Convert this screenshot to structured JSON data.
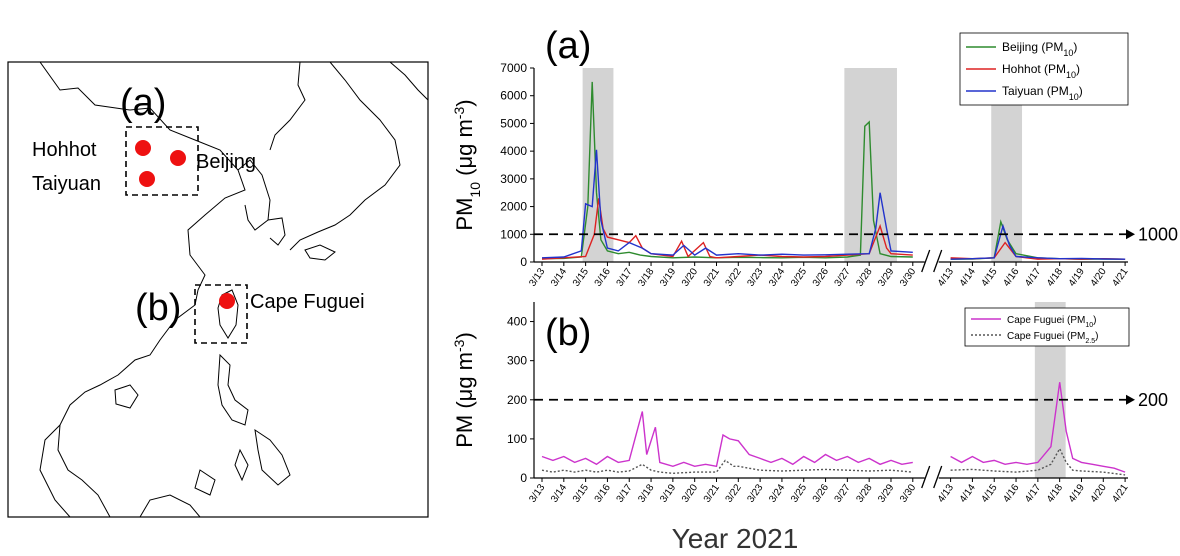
{
  "map": {
    "region_a_label": "(a)",
    "region_b_label": "(b)",
    "sites": [
      {
        "name": "Hohhot",
        "lon": 111.7,
        "lat": 40.8
      },
      {
        "name": "Beijing",
        "lon": 116.4,
        "lat": 39.9
      },
      {
        "name": "Taiyuan",
        "lon": 112.5,
        "lat": 37.9
      },
      {
        "name": "Cape Fuguei",
        "lon": 121.5,
        "lat": 25.3
      }
    ],
    "marker_color": "#ee1111"
  },
  "xlabel_shared": "Year 2021",
  "chart_data": [
    {
      "type": "line",
      "panel_label": "(a)",
      "ylabel_main": "PM",
      "ylabel_sub": "10",
      "ylabel_unit": " (μg m",
      "ylabel_exp": "-3",
      "ylabel_close": ")",
      "ylim": [
        0,
        7000
      ],
      "yticks": [
        "0",
        "1000",
        "2000",
        "3000",
        "4000",
        "5000",
        "6000",
        "7000"
      ],
      "xticks": [
        "3/13",
        "3/14",
        "3/15",
        "3/16",
        "3/17",
        "3/18",
        "3/19",
        "3/20",
        "3/21",
        "3/22",
        "3/23",
        "3/24",
        "3/25",
        "3/26",
        "3/27",
        "3/28",
        "3/29",
        "3/30",
        "4/13",
        "4/14",
        "4/15",
        "4/16",
        "4/17",
        "4/18",
        "4/19",
        "4/20",
        "4/21"
      ],
      "axis_break": "between 3/30 and 4/13",
      "reference_line": {
        "value": 1000,
        "label": "1000"
      },
      "shaded_periods": [
        [
          "3/15",
          "3/16"
        ],
        [
          "3/27",
          "3/29"
        ],
        [
          "4/15",
          "4/16"
        ]
      ],
      "legend": {
        "position": "top-right"
      },
      "series": [
        {
          "name": "Beijing (PM10)",
          "label_main": "Beijing (PM",
          "label_sub": "10",
          "label_close": ")",
          "color": "#2e8b2e",
          "points": [
            [
              0,
              120
            ],
            [
              1,
              130
            ],
            [
              1.8,
              180
            ],
            [
              2.1,
              2000
            ],
            [
              2.3,
              6500
            ],
            [
              2.5,
              2500
            ],
            [
              2.7,
              800
            ],
            [
              3,
              400
            ],
            [
              3.5,
              300
            ],
            [
              4,
              350
            ],
            [
              4.5,
              250
            ],
            [
              5,
              200
            ],
            [
              6,
              150
            ],
            [
              7,
              180
            ],
            [
              8,
              150
            ],
            [
              9,
              170
            ],
            [
              10,
              160
            ],
            [
              11,
              150
            ],
            [
              12,
              170
            ],
            [
              13,
              150
            ],
            [
              14,
              180
            ],
            [
              14.6,
              250
            ],
            [
              14.8,
              4900
            ],
            [
              15.0,
              5050
            ],
            [
              15.2,
              1500
            ],
            [
              15.5,
              300
            ],
            [
              16,
              200
            ],
            [
              17,
              180
            ],
            [
              18,
              100
            ],
            [
              19,
              110
            ],
            [
              20,
              150
            ],
            [
              20.3,
              1450
            ],
            [
              20.6,
              800
            ],
            [
              21,
              300
            ],
            [
              22,
              150
            ],
            [
              23,
              120
            ],
            [
              24,
              100
            ],
            [
              25,
              110
            ],
            [
              26,
              100
            ]
          ]
        },
        {
          "name": "Hohhot (PM10)",
          "label_main": "Hohhot (PM",
          "label_sub": "10",
          "label_close": ")",
          "color": "#dd2222",
          "points": [
            [
              0,
              100
            ],
            [
              1,
              150
            ],
            [
              2,
              200
            ],
            [
              2.4,
              1000
            ],
            [
              2.6,
              2300
            ],
            [
              2.8,
              1200
            ],
            [
              3,
              900
            ],
            [
              3.5,
              800
            ],
            [
              4,
              700
            ],
            [
              4.3,
              950
            ],
            [
              4.6,
              500
            ],
            [
              5,
              300
            ],
            [
              6,
              200
            ],
            [
              6.4,
              750
            ],
            [
              6.7,
              200
            ],
            [
              7.4,
              700
            ],
            [
              7.7,
              200
            ],
            [
              8,
              150
            ],
            [
              9,
              200
            ],
            [
              10,
              250
            ],
            [
              11,
              200
            ],
            [
              12,
              180
            ],
            [
              13,
              200
            ],
            [
              14,
              250
            ],
            [
              15,
              300
            ],
            [
              15.5,
              1300
            ],
            [
              15.8,
              500
            ],
            [
              16,
              300
            ],
            [
              17,
              250
            ],
            [
              18,
              150
            ],
            [
              19,
              120
            ],
            [
              20,
              150
            ],
            [
              20.5,
              700
            ],
            [
              20.8,
              400
            ],
            [
              21,
              200
            ],
            [
              22,
              100
            ],
            [
              23,
              120
            ],
            [
              24,
              100
            ],
            [
              25,
              120
            ],
            [
              26,
              100
            ]
          ]
        },
        {
          "name": "Taiyuan (PM10)",
          "label_main": "Taiyuan (PM",
          "label_sub": "10",
          "label_close": ")",
          "color": "#2233cc",
          "points": [
            [
              0,
              150
            ],
            [
              1,
              180
            ],
            [
              1.8,
              400
            ],
            [
              2.0,
              2100
            ],
            [
              2.3,
              2000
            ],
            [
              2.5,
              4050
            ],
            [
              2.7,
              1500
            ],
            [
              3,
              500
            ],
            [
              3.5,
              400
            ],
            [
              4,
              700
            ],
            [
              4.3,
              600
            ],
            [
              4.6,
              500
            ],
            [
              5,
              300
            ],
            [
              6,
              250
            ],
            [
              6.5,
              600
            ],
            [
              7,
              250
            ],
            [
              7.5,
              500
            ],
            [
              8,
              250
            ],
            [
              9,
              300
            ],
            [
              10,
              250
            ],
            [
              11,
              280
            ],
            [
              12,
              250
            ],
            [
              13,
              260
            ],
            [
              14,
              280
            ],
            [
              15,
              300
            ],
            [
              15.3,
              1200
            ],
            [
              15.5,
              2500
            ],
            [
              15.8,
              1200
            ],
            [
              16,
              400
            ],
            [
              17,
              350
            ],
            [
              17.5,
              200
            ],
            [
              18,
              100
            ],
            [
              19,
              120
            ],
            [
              20,
              150
            ],
            [
              20.4,
              1300
            ],
            [
              20.7,
              600
            ],
            [
              21,
              200
            ],
            [
              22,
              150
            ],
            [
              23,
              120
            ],
            [
              24,
              130
            ],
            [
              25,
              110
            ],
            [
              26,
              100
            ]
          ]
        }
      ]
    },
    {
      "type": "line",
      "panel_label": "(b)",
      "ylabel_main": "PM",
      "ylabel_unit": " (μg m",
      "ylabel_exp": "-3",
      "ylabel_close": ")",
      "ylim": [
        0,
        450
      ],
      "yticks": [
        "0",
        "100",
        "200",
        "300",
        "400"
      ],
      "xticks": [
        "3/13",
        "3/14",
        "3/15",
        "3/16",
        "3/17",
        "3/18",
        "3/19",
        "3/20",
        "3/21",
        "3/22",
        "3/23",
        "3/24",
        "3/25",
        "3/26",
        "3/27",
        "3/28",
        "3/29",
        "3/30",
        "4/13",
        "4/14",
        "4/15",
        "4/16",
        "4/17",
        "4/18",
        "4/19",
        "4/20",
        "4/21"
      ],
      "axis_break": "between 3/30 and 4/13",
      "reference_line": {
        "value": 200,
        "label": "200"
      },
      "shaded_periods": [
        [
          "4/17",
          "4/18"
        ]
      ],
      "legend": {
        "position": "top-right"
      },
      "series": [
        {
          "name": "Cape Fuguei (PM10)",
          "label_main": "Cape Fuguei (PM",
          "label_sub": "10",
          "label_close": ")",
          "color": "#cc33cc",
          "dash": "",
          "points": [
            [
              0,
              55
            ],
            [
              0.5,
              45
            ],
            [
              1,
              55
            ],
            [
              1.5,
              40
            ],
            [
              2,
              50
            ],
            [
              2.5,
              35
            ],
            [
              3,
              55
            ],
            [
              3.5,
              40
            ],
            [
              4,
              45
            ],
            [
              4.6,
              170
            ],
            [
              4.8,
              60
            ],
            [
              5.2,
              130
            ],
            [
              5.4,
              40
            ],
            [
              6,
              30
            ],
            [
              6.5,
              40
            ],
            [
              7,
              30
            ],
            [
              7.5,
              35
            ],
            [
              8,
              30
            ],
            [
              8.3,
              110
            ],
            [
              8.6,
              100
            ],
            [
              9,
              95
            ],
            [
              9.5,
              60
            ],
            [
              10,
              50
            ],
            [
              10.5,
              40
            ],
            [
              11,
              50
            ],
            [
              11.5,
              35
            ],
            [
              12,
              55
            ],
            [
              12.5,
              40
            ],
            [
              13,
              60
            ],
            [
              13.5,
              45
            ],
            [
              14,
              55
            ],
            [
              14.5,
              40
            ],
            [
              15,
              50
            ],
            [
              15.5,
              35
            ],
            [
              16,
              45
            ],
            [
              16.5,
              35
            ],
            [
              17,
              40
            ],
            [
              17.5,
              30
            ],
            [
              18,
              55
            ],
            [
              18.5,
              40
            ],
            [
              19,
              55
            ],
            [
              19.5,
              40
            ],
            [
              20,
              45
            ],
            [
              20.5,
              35
            ],
            [
              21,
              40
            ],
            [
              21.5,
              35
            ],
            [
              22,
              40
            ],
            [
              22.6,
              80
            ],
            [
              23.0,
              245
            ],
            [
              23.3,
              120
            ],
            [
              23.6,
              50
            ],
            [
              24,
              40
            ],
            [
              24.5,
              35
            ],
            [
              25,
              30
            ],
            [
              25.5,
              25
            ],
            [
              26,
              15
            ]
          ]
        },
        {
          "name": "Cape Fuguei (PM2.5)",
          "label_main": "Cape Fuguei (PM",
          "label_sub": "2.5",
          "label_close": ")",
          "color": "#555555",
          "dash": "2,2",
          "points": [
            [
              0,
              20
            ],
            [
              0.5,
              15
            ],
            [
              1,
              20
            ],
            [
              1.5,
              15
            ],
            [
              2,
              20
            ],
            [
              2.5,
              15
            ],
            [
              3,
              20
            ],
            [
              3.5,
              15
            ],
            [
              4,
              18
            ],
            [
              4.6,
              35
            ],
            [
              5,
              20
            ],
            [
              5.4,
              15
            ],
            [
              6,
              12
            ],
            [
              7,
              15
            ],
            [
              8,
              15
            ],
            [
              8.4,
              45
            ],
            [
              8.8,
              30
            ],
            [
              9,
              30
            ],
            [
              10,
              20
            ],
            [
              11,
              18
            ],
            [
              12,
              20
            ],
            [
              13,
              22
            ],
            [
              14,
              20
            ],
            [
              15,
              18
            ],
            [
              16,
              20
            ],
            [
              17,
              15
            ],
            [
              18,
              20
            ],
            [
              19,
              22
            ],
            [
              20,
              18
            ],
            [
              21,
              15
            ],
            [
              22,
              20
            ],
            [
              22.6,
              35
            ],
            [
              23.0,
              75
            ],
            [
              23.3,
              40
            ],
            [
              23.6,
              20
            ],
            [
              24,
              18
            ],
            [
              25,
              15
            ],
            [
              26,
              8
            ]
          ]
        }
      ]
    }
  ]
}
